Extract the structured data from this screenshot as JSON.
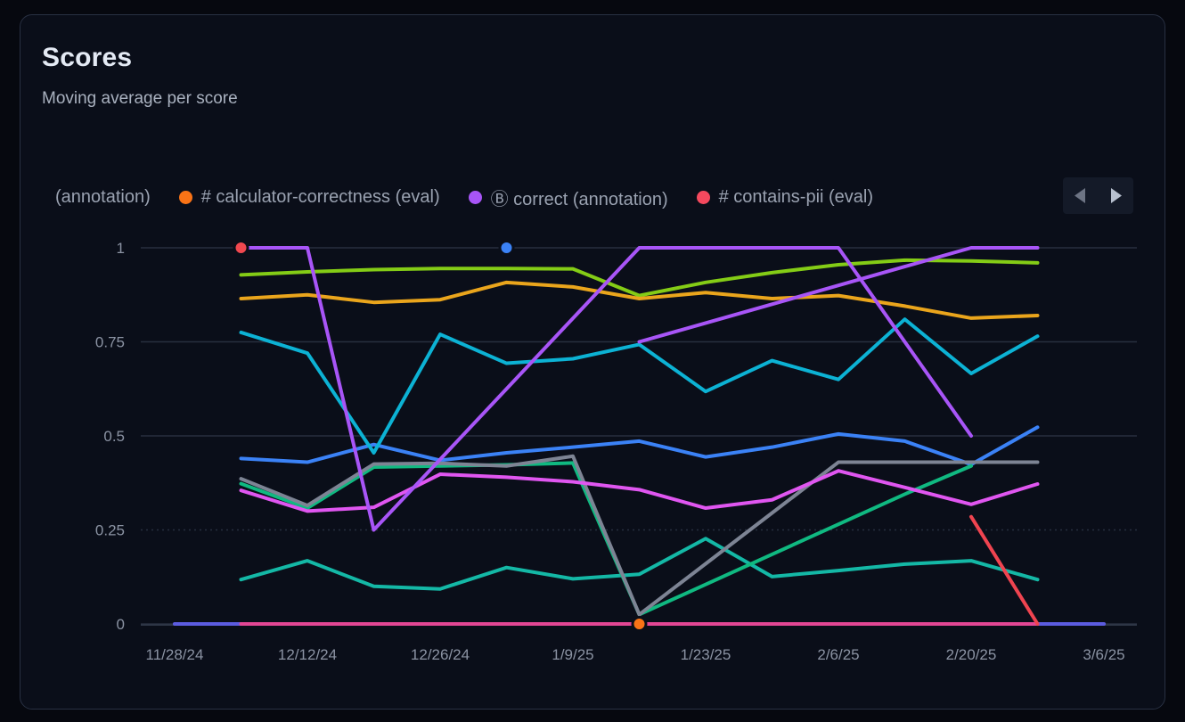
{
  "header": {
    "title": "Scores",
    "subtitle": "Moving average per score"
  },
  "legend": {
    "items": [
      {
        "label": "(annotation)",
        "color": null
      },
      {
        "label": "# calculator-correctness (eval)",
        "color": "#f97316"
      },
      {
        "label": "Ⓑ correct (annotation)",
        "color": "#a855f7"
      },
      {
        "label": "# contains-pii (eval)",
        "color": "#f5495e"
      }
    ]
  },
  "chart_data": {
    "type": "line",
    "title": "Scores",
    "subtitle": "Moving average per score",
    "ylim": [
      0,
      1
    ],
    "grid": true,
    "x_tick_labels": [
      "11/28/24",
      "12/12/24",
      "12/26/24",
      "1/9/25",
      "1/23/25",
      "2/6/25",
      "2/20/25",
      "3/6/25"
    ],
    "x_tick_weeks": [
      0,
      2,
      4,
      6,
      8,
      10,
      12,
      14
    ],
    "week0_date": "11/28/24",
    "y_ticks": [
      {
        "label": "0",
        "value": 0,
        "dashed": false
      },
      {
        "label": "0.25",
        "value": 0.25,
        "dashed": true
      },
      {
        "label": "0.5",
        "value": 0.5,
        "dashed": false
      },
      {
        "label": "0.75",
        "value": 0.75,
        "dashed": false
      },
      {
        "label": "1",
        "value": 1,
        "dashed": false
      }
    ],
    "series": [
      {
        "name": "indigo-baseline",
        "color": "#5c5ce0",
        "start_week": 0,
        "values": [
          0,
          0,
          0,
          0,
          0,
          0,
          0,
          0,
          0,
          0,
          0,
          0,
          0,
          0,
          0
        ]
      },
      {
        "name": "pink-baseline",
        "color": "#e34694",
        "start_week": 1,
        "values": [
          0,
          0,
          0,
          0,
          0,
          0,
          0,
          0,
          0,
          0,
          0,
          0,
          0
        ]
      },
      {
        "name": "lime",
        "color": "#84cc16",
        "start_week": 1,
        "values": [
          0.928,
          0.936,
          0.942,
          0.945,
          0.945,
          0.944,
          0.873,
          0.908,
          0.934,
          0.955,
          0.967,
          0.965,
          0.96
        ]
      },
      {
        "name": "orange",
        "color": "#eaa51c",
        "start_week": 1,
        "values": [
          0.865,
          0.875,
          0.855,
          0.862,
          0.908,
          0.896,
          0.865,
          0.881,
          0.865,
          0.873,
          0.845,
          0.813,
          0.82
        ]
      },
      {
        "name": "teal",
        "color": "#14b8a6",
        "start_week": 1,
        "values": [
          0.118,
          0.168,
          0.1,
          0.093,
          0.15,
          0.12,
          0.132,
          0.227,
          0.126,
          0.142,
          0.159,
          0.168,
          0.118
        ]
      },
      {
        "name": "blue",
        "color": "#3b82f6",
        "start_week": 1,
        "values": [
          0.44,
          0.43,
          0.477,
          0.435,
          0.455,
          0.47,
          0.486,
          0.444,
          0.47,
          0.505,
          0.486,
          0.424,
          0.523
        ]
      },
      {
        "name": "emerald",
        "color": "#10b981",
        "start_week": 1,
        "values": [
          0.373,
          0.308,
          0.417,
          0.42,
          0.423,
          0.428,
          0.025,
          0.105,
          0.185,
          0.265,
          0.345,
          0.42
        ]
      },
      {
        "name": "gray",
        "color": "#7d8494",
        "start_week": 1,
        "values": [
          0.386,
          0.315,
          0.425,
          0.427,
          0.42,
          0.446,
          0.025,
          0.16,
          0.295,
          0.43,
          0.43,
          0.43,
          0.43
        ]
      },
      {
        "name": "magenta",
        "color": "#e056f0",
        "start_week": 1,
        "values": [
          0.355,
          0.3,
          0.31,
          0.398,
          0.39,
          0.378,
          0.357,
          0.308,
          0.33,
          0.407,
          0.363,
          0.318,
          0.372
        ]
      },
      {
        "name": "cyan",
        "color": "#0cb2d4",
        "start_week": 1,
        "values": [
          0.775,
          0.72,
          0.455,
          0.77,
          0.693,
          0.705,
          0.743,
          0.618,
          0.7,
          0.65,
          0.81,
          0.666,
          0.765
        ]
      },
      {
        "name": "purple-a",
        "color": "#a855f7",
        "start_week": 1,
        "values": [
          1,
          1,
          0.25,
          0.4375,
          0.625,
          0.8125,
          1,
          1,
          1,
          1,
          0.75,
          0.5
        ]
      },
      {
        "name": "purple-b",
        "color": "#a855f7",
        "start_week": 7,
        "values": [
          0.75,
          0.8,
          0.85,
          0.9,
          0.95,
          1.0,
          1.0
        ]
      },
      {
        "name": "red",
        "color": "#ef4450",
        "start_week": 12,
        "values": [
          0.285,
          0.0
        ]
      }
    ],
    "markers": [
      {
        "name": "red-point",
        "week": 1,
        "value": 1,
        "color": "#f0484f"
      },
      {
        "name": "blue-point",
        "week": 5,
        "value": 1,
        "color": "#3b82f6"
      },
      {
        "name": "orange-point",
        "week": 7,
        "value": 0,
        "color": "#f97316"
      }
    ]
  }
}
